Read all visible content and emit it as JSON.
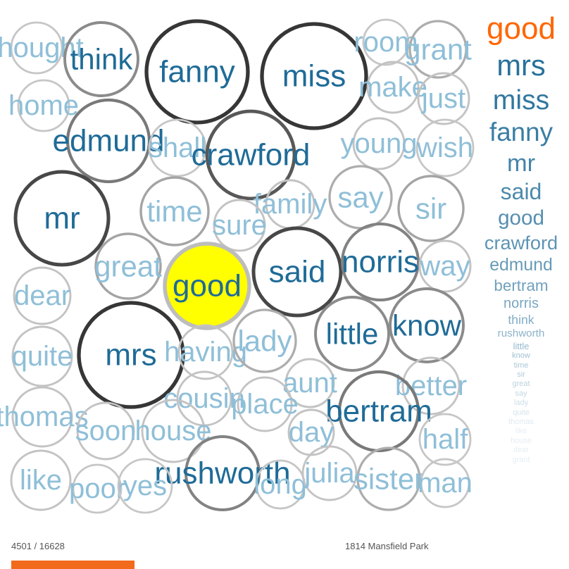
{
  "chart_data": {
    "type": "bubble",
    "highlight_word": "good",
    "bubbles": [
      {
        "word": "thought",
        "weight": 0.1
      },
      {
        "word": "think",
        "weight": 0.45
      },
      {
        "word": "fanny",
        "weight": 0.95
      },
      {
        "word": "miss",
        "weight": 0.95
      },
      {
        "word": "room",
        "weight": 0.1
      },
      {
        "word": "grant",
        "weight": 0.25
      },
      {
        "word": "home",
        "weight": 0.1
      },
      {
        "word": "make",
        "weight": 0.12
      },
      {
        "word": "just",
        "weight": 0.12
      },
      {
        "word": "edmund",
        "weight": 0.55
      },
      {
        "word": "shall",
        "weight": 0.1
      },
      {
        "word": "crawford",
        "weight": 0.75
      },
      {
        "word": "young",
        "weight": 0.12
      },
      {
        "word": "wish",
        "weight": 0.1
      },
      {
        "word": "mr",
        "weight": 0.85
      },
      {
        "word": "time",
        "weight": 0.3
      },
      {
        "word": "family",
        "weight": 0.12
      },
      {
        "word": "say",
        "weight": 0.25
      },
      {
        "word": "sir",
        "weight": 0.3
      },
      {
        "word": "sure",
        "weight": 0.12
      },
      {
        "word": "great",
        "weight": 0.3
      },
      {
        "word": "good",
        "weight": 1.0
      },
      {
        "word": "said",
        "weight": 0.85
      },
      {
        "word": "norris",
        "weight": 0.5
      },
      {
        "word": "way",
        "weight": 0.12
      },
      {
        "word": "dear",
        "weight": 0.12
      },
      {
        "word": "mrs",
        "weight": 0.95
      },
      {
        "word": "having",
        "weight": 0.12
      },
      {
        "word": "lady",
        "weight": 0.25
      },
      {
        "word": "little",
        "weight": 0.45
      },
      {
        "word": "know",
        "weight": 0.45
      },
      {
        "word": "quite",
        "weight": 0.12
      },
      {
        "word": "aunt",
        "weight": 0.12
      },
      {
        "word": "better",
        "weight": 0.12
      },
      {
        "word": "cousin",
        "weight": 0.12
      },
      {
        "word": "thomas",
        "weight": 0.12
      },
      {
        "word": "place",
        "weight": 0.12
      },
      {
        "word": "bertram",
        "weight": 0.55
      },
      {
        "word": "soon",
        "weight": 0.12
      },
      {
        "word": "house",
        "weight": 0.12
      },
      {
        "word": "day",
        "weight": 0.12
      },
      {
        "word": "half",
        "weight": 0.1
      },
      {
        "word": "rushworth",
        "weight": 0.5
      },
      {
        "word": "like",
        "weight": 0.12
      },
      {
        "word": "poor",
        "weight": 0.1
      },
      {
        "word": "yes",
        "weight": 0.1
      },
      {
        "word": "long",
        "weight": 0.1
      },
      {
        "word": "julia",
        "weight": 0.12
      },
      {
        "word": "sister",
        "weight": 0.25
      },
      {
        "word": "man",
        "weight": 0.1
      }
    ],
    "ranking": [
      {
        "word": "good",
        "highlight": true
      },
      {
        "word": "mrs"
      },
      {
        "word": "miss"
      },
      {
        "word": "fanny"
      },
      {
        "word": "mr"
      },
      {
        "word": "said"
      },
      {
        "word": "good"
      },
      {
        "word": "crawford"
      },
      {
        "word": "edmund"
      },
      {
        "word": "bertram"
      },
      {
        "word": "norris"
      },
      {
        "word": "think"
      },
      {
        "word": "rushworth"
      },
      {
        "word": "little"
      },
      {
        "word": "know"
      },
      {
        "word": "time"
      },
      {
        "word": "sir"
      },
      {
        "word": "great"
      },
      {
        "word": "say"
      },
      {
        "word": "lady"
      },
      {
        "word": "quite"
      },
      {
        "word": "thomas"
      },
      {
        "word": "like"
      },
      {
        "word": "house"
      },
      {
        "word": "dear"
      },
      {
        "word": "grant"
      }
    ]
  },
  "progress": {
    "label": "4501 / 16628",
    "current": 4501,
    "total": 16628
  },
  "book_label": "1814 Mansfield Park",
  "colors": {
    "text_strong": "#1f6b97",
    "text_faint": "#8fbfd8",
    "highlight_fill": "#ffff00",
    "highlight_text": "#ff6600",
    "progress": "#f26a1b"
  }
}
